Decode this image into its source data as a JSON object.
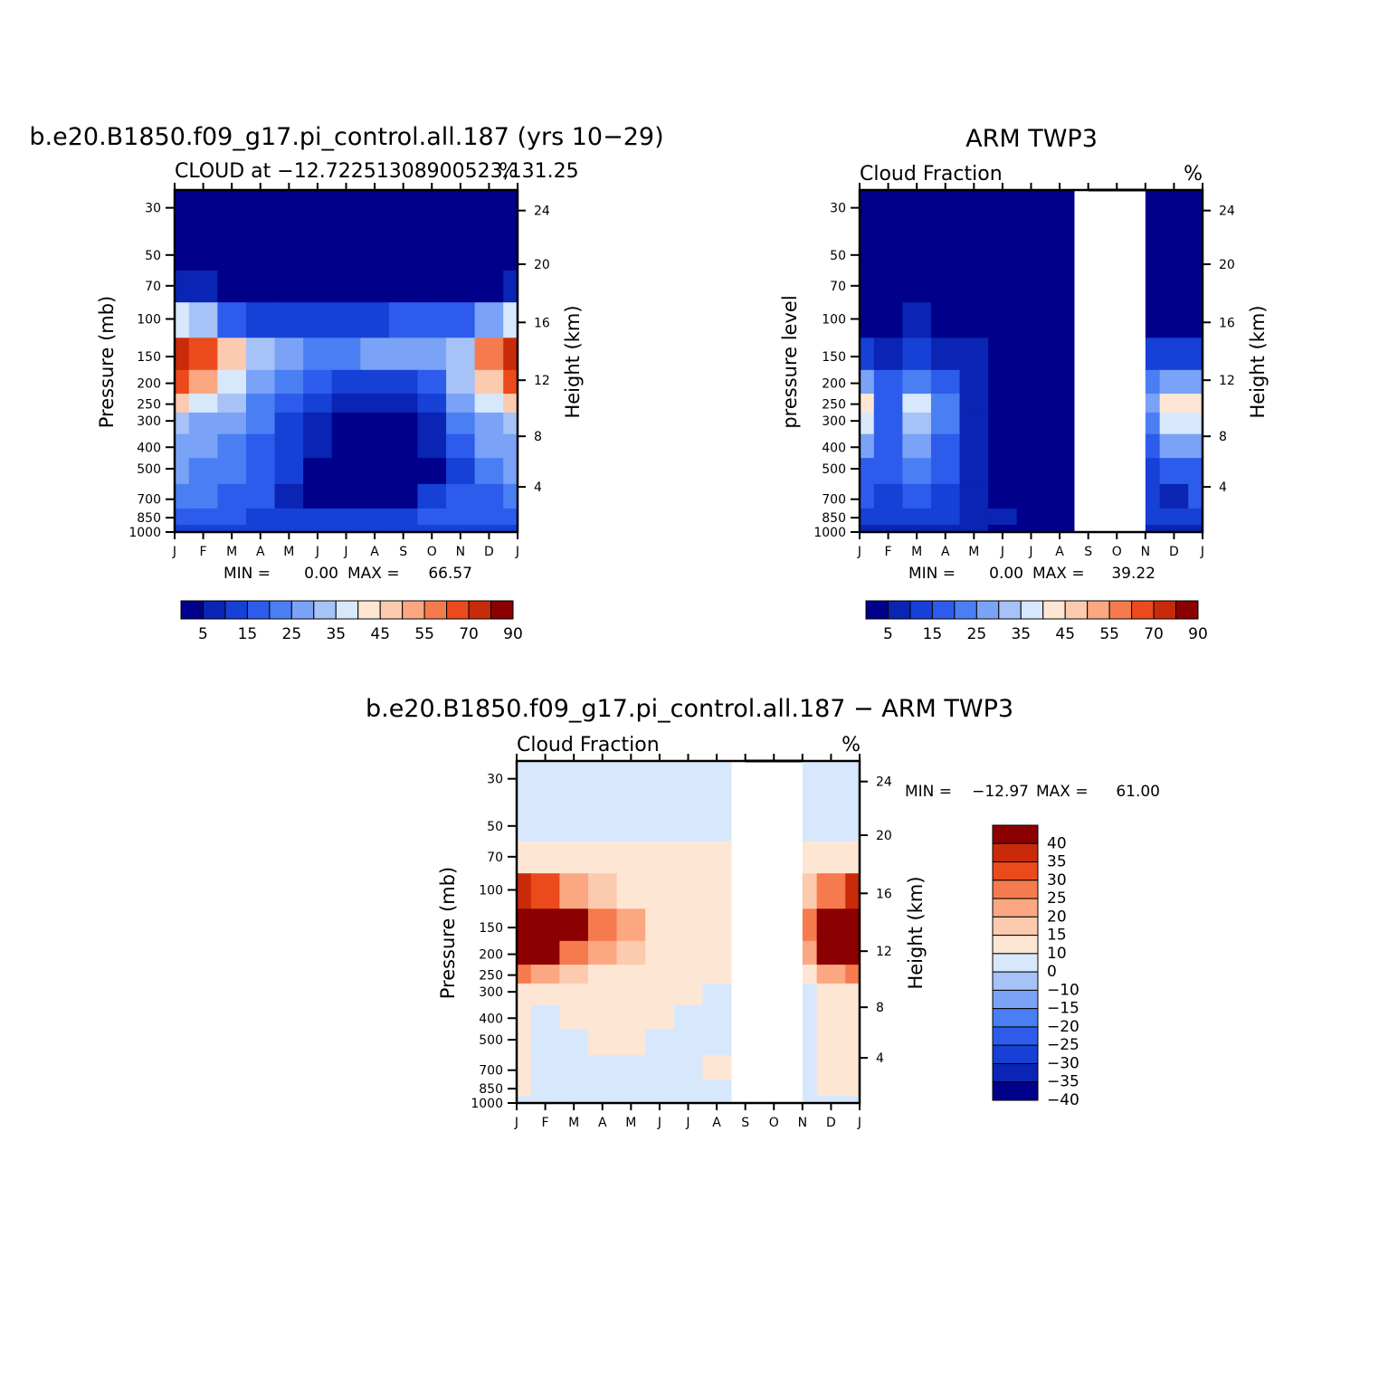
{
  "colors": {
    "cloud_palette": [
      "#00008b",
      "#0a24b3",
      "#1640d6",
      "#2d5cec",
      "#4a7ef3",
      "#7aa2f6",
      "#a6c2f7",
      "#d7e8fc",
      "#fde6d4",
      "#fccaae",
      "#fba782",
      "#f57b4e",
      "#eb4b1c",
      "#c92a0a",
      "#8b0000"
    ],
    "diff_palette": [
      "#00008b",
      "#0a24b3",
      "#1640d6",
      "#2d5cec",
      "#4a7ef3",
      "#7aa2f6",
      "#a6c2f7",
      "#d7e8fc",
      "#fde6d4",
      "#fccaae",
      "#fba782",
      "#f57b4e",
      "#eb4b1c",
      "#c92a0a",
      "#8b0000"
    ]
  },
  "chart_data": [
    {
      "type": "heatmap",
      "title": "b.e20.B1850.f09_g17.pi_control.all.187 (yrs 10−29)",
      "subtitle": "CLOUD at −12.72251308900523,131.25",
      "units": "%",
      "ylabel": "Pressure (mb)",
      "ylabel_right": "Height (km)",
      "x_ticks": [
        "J",
        "F",
        "M",
        "A",
        "M",
        "J",
        "J",
        "A",
        "S",
        "O",
        "N",
        "D",
        "J"
      ],
      "y_ticks": [
        "30",
        "50",
        "70",
        "100",
        "150",
        "200",
        "250",
        "300",
        "400",
        "500",
        "700",
        "850",
        "1000"
      ],
      "y_ticks_right": [
        "24",
        "20",
        "16",
        "12",
        "8",
        "4"
      ],
      "stats": {
        "min_label": "MIN =",
        "min": "0.00",
        "max_label": "MAX =",
        "max": "66.57"
      },
      "colorbar_labels": [
        "5",
        "15",
        "25",
        "35",
        "45",
        "55",
        "70",
        "90"
      ],
      "levels": [
        30,
        50,
        70,
        100,
        150,
        200,
        250,
        300,
        400,
        500,
        700,
        850,
        1000
      ],
      "months": [
        "Jan",
        "Feb",
        "Mar",
        "Apr",
        "May",
        "Jun",
        "Jul",
        "Aug",
        "Sep",
        "Oct",
        "Nov",
        "Dec",
        "Jan"
      ],
      "values": [
        [
          0,
          0,
          0,
          0,
          0,
          0,
          0,
          0,
          0,
          0,
          0,
          0,
          0
        ],
        [
          0,
          0,
          0,
          0,
          0,
          0,
          0,
          0,
          0,
          0,
          0,
          0,
          0
        ],
        [
          2,
          2,
          1,
          1,
          0,
          0,
          0,
          0,
          1,
          1,
          1,
          1,
          2
        ],
        [
          30,
          25,
          12,
          8,
          6,
          5,
          6,
          9,
          12,
          12,
          12,
          20,
          30
        ],
        [
          66,
          55,
          40,
          28,
          20,
          15,
          16,
          20,
          22,
          24,
          28,
          50,
          66
        ],
        [
          58,
          45,
          33,
          24,
          17,
          10,
          6,
          6,
          8,
          12,
          25,
          40,
          58
        ],
        [
          40,
          32,
          25,
          18,
          12,
          5,
          2,
          2,
          3,
          6,
          20,
          30,
          40
        ],
        [
          28,
          24,
          20,
          15,
          9,
          3,
          1,
          1,
          1,
          3,
          15,
          24,
          28
        ],
        [
          22,
          20,
          17,
          13,
          6,
          2,
          1,
          1,
          1,
          2,
          10,
          20,
          22
        ],
        [
          20,
          18,
          16,
          11,
          5,
          1,
          0,
          0,
          0,
          1,
          7,
          16,
          20
        ],
        [
          16,
          15,
          14,
          10,
          4,
          1,
          0,
          0,
          1,
          5,
          10,
          14,
          16
        ],
        [
          14,
          13,
          12,
          9,
          8,
          6,
          5,
          5,
          7,
          10,
          12,
          14,
          14
        ],
        [
          8,
          8,
          7,
          6,
          6,
          6,
          5,
          5,
          6,
          7,
          8,
          8,
          8
        ]
      ]
    },
    {
      "type": "heatmap",
      "title": "ARM TWP3",
      "subtitle": "Cloud Fraction",
      "units": "%",
      "ylabel": "pressure level",
      "ylabel_right": "Height (km)",
      "x_ticks": [
        "J",
        "F",
        "M",
        "A",
        "M",
        "J",
        "J",
        "A",
        "S",
        "O",
        "N",
        "D",
        "J"
      ],
      "y_ticks": [
        "30",
        "50",
        "70",
        "100",
        "150",
        "200",
        "250",
        "300",
        "400",
        "500",
        "700",
        "850",
        "1000"
      ],
      "y_ticks_right": [
        "24",
        "20",
        "16",
        "12",
        "8",
        "4"
      ],
      "stats": {
        "min_label": "MIN =",
        "min": "0.00",
        "max_label": "MAX =",
        "max": "39.22"
      },
      "colorbar_labels": [
        "5",
        "15",
        "25",
        "35",
        "45",
        "55",
        "70",
        "90"
      ],
      "missing_months": [
        "Sep",
        "Oct"
      ],
      "values": [
        [
          0,
          0,
          0,
          0,
          0,
          0,
          0,
          0,
          null,
          null,
          0,
          0,
          0
        ],
        [
          0,
          0,
          0,
          0,
          0,
          0,
          0,
          0,
          null,
          null,
          0,
          0,
          0
        ],
        [
          0,
          0,
          0,
          0,
          0,
          0,
          0,
          0,
          null,
          null,
          0,
          0,
          0
        ],
        [
          1,
          1,
          2,
          1,
          0,
          0,
          0,
          0,
          null,
          null,
          1,
          1,
          1
        ],
        [
          6,
          4,
          5,
          4,
          2,
          0,
          0,
          0,
          null,
          null,
          5,
          6,
          6
        ],
        [
          20,
          10,
          18,
          12,
          4,
          0,
          0,
          0,
          null,
          null,
          15,
          20,
          20
        ],
        [
          38,
          14,
          32,
          16,
          4,
          0,
          0,
          0,
          null,
          null,
          20,
          36,
          38
        ],
        [
          30,
          14,
          28,
          16,
          4,
          0,
          0,
          0,
          null,
          null,
          18,
          32,
          30
        ],
        [
          20,
          12,
          22,
          12,
          3,
          0,
          0,
          0,
          null,
          null,
          12,
          20,
          20
        ],
        [
          14,
          10,
          18,
          10,
          3,
          0,
          0,
          0,
          null,
          null,
          8,
          14,
          14
        ],
        [
          10,
          8,
          10,
          6,
          2,
          0,
          0,
          0,
          null,
          null,
          5,
          4,
          10
        ],
        [
          8,
          6,
          8,
          5,
          4,
          2,
          0,
          0,
          null,
          null,
          6,
          8,
          8
        ],
        [
          4,
          4,
          4,
          3,
          2,
          1,
          0,
          0,
          null,
          null,
          3,
          4,
          4
        ]
      ]
    },
    {
      "type": "heatmap",
      "title": "b.e20.B1850.f09_g17.pi_control.all.187 − ARM TWP3",
      "subtitle": "Cloud Fraction",
      "units": "%",
      "ylabel": "Pressure (mb)",
      "ylabel_right": "Height (km)",
      "x_ticks": [
        "J",
        "F",
        "M",
        "A",
        "M",
        "J",
        "J",
        "A",
        "S",
        "O",
        "N",
        "D",
        "J"
      ],
      "y_ticks": [
        "30",
        "50",
        "70",
        "100",
        "150",
        "200",
        "250",
        "300",
        "400",
        "500",
        "700",
        "850",
        "1000"
      ],
      "y_ticks_right": [
        "24",
        "20",
        "16",
        "12",
        "8",
        "4"
      ],
      "stats": {
        "min_label": "MIN =",
        "min": "−12.97",
        "max_label": "MAX =",
        "max": "61.00"
      },
      "colorbar_labels": [
        "40",
        "35",
        "30",
        "25",
        "20",
        "15",
        "10",
        "0",
        "−10",
        "−15",
        "−20",
        "−25",
        "−30",
        "−35",
        "−40"
      ],
      "missing_months": [
        "Sep",
        "Oct"
      ],
      "values": [
        [
          -2,
          -2,
          -2,
          -2,
          -2,
          -2,
          -2,
          -2,
          null,
          null,
          -2,
          -2,
          -2
        ],
        [
          -1,
          -1,
          -1,
          -1,
          -1,
          -1,
          -1,
          -1,
          null,
          null,
          -1,
          -1,
          -1
        ],
        [
          2,
          2,
          1,
          1,
          1,
          1,
          1,
          1,
          null,
          null,
          2,
          2,
          2
        ],
        [
          30,
          25,
          18,
          10,
          8,
          6,
          6,
          8,
          null,
          null,
          12,
          22,
          30
        ],
        [
          60,
          56,
          38,
          24,
          16,
          8,
          6,
          8,
          null,
          null,
          20,
          50,
          60
        ],
        [
          42,
          38,
          20,
          18,
          14,
          6,
          4,
          4,
          null,
          null,
          15,
          38,
          42
        ],
        [
          20,
          18,
          12,
          8,
          6,
          3,
          2,
          2,
          null,
          null,
          5,
          18,
          20
        ],
        [
          5,
          4,
          3,
          3,
          2,
          2,
          1,
          -2,
          null,
          null,
          -1,
          4,
          5
        ],
        [
          2,
          -3,
          2,
          1,
          2,
          2,
          -3,
          -4,
          null,
          null,
          -1,
          1,
          2
        ],
        [
          6,
          -3,
          -3,
          1,
          2,
          -4,
          -4,
          -5,
          null,
          null,
          -1,
          1,
          6
        ],
        [
          4,
          -5,
          -4,
          -2,
          -2,
          -3,
          -3,
          2,
          null,
          null,
          -1,
          4,
          4
        ],
        [
          2,
          -4,
          -3,
          -3,
          -3,
          -3,
          -3,
          -2,
          null,
          null,
          -1,
          2,
          2
        ],
        [
          -1,
          -1,
          -1,
          -1,
          -1,
          -1,
          -1,
          -1,
          null,
          null,
          -1,
          -1,
          -1
        ]
      ]
    }
  ]
}
